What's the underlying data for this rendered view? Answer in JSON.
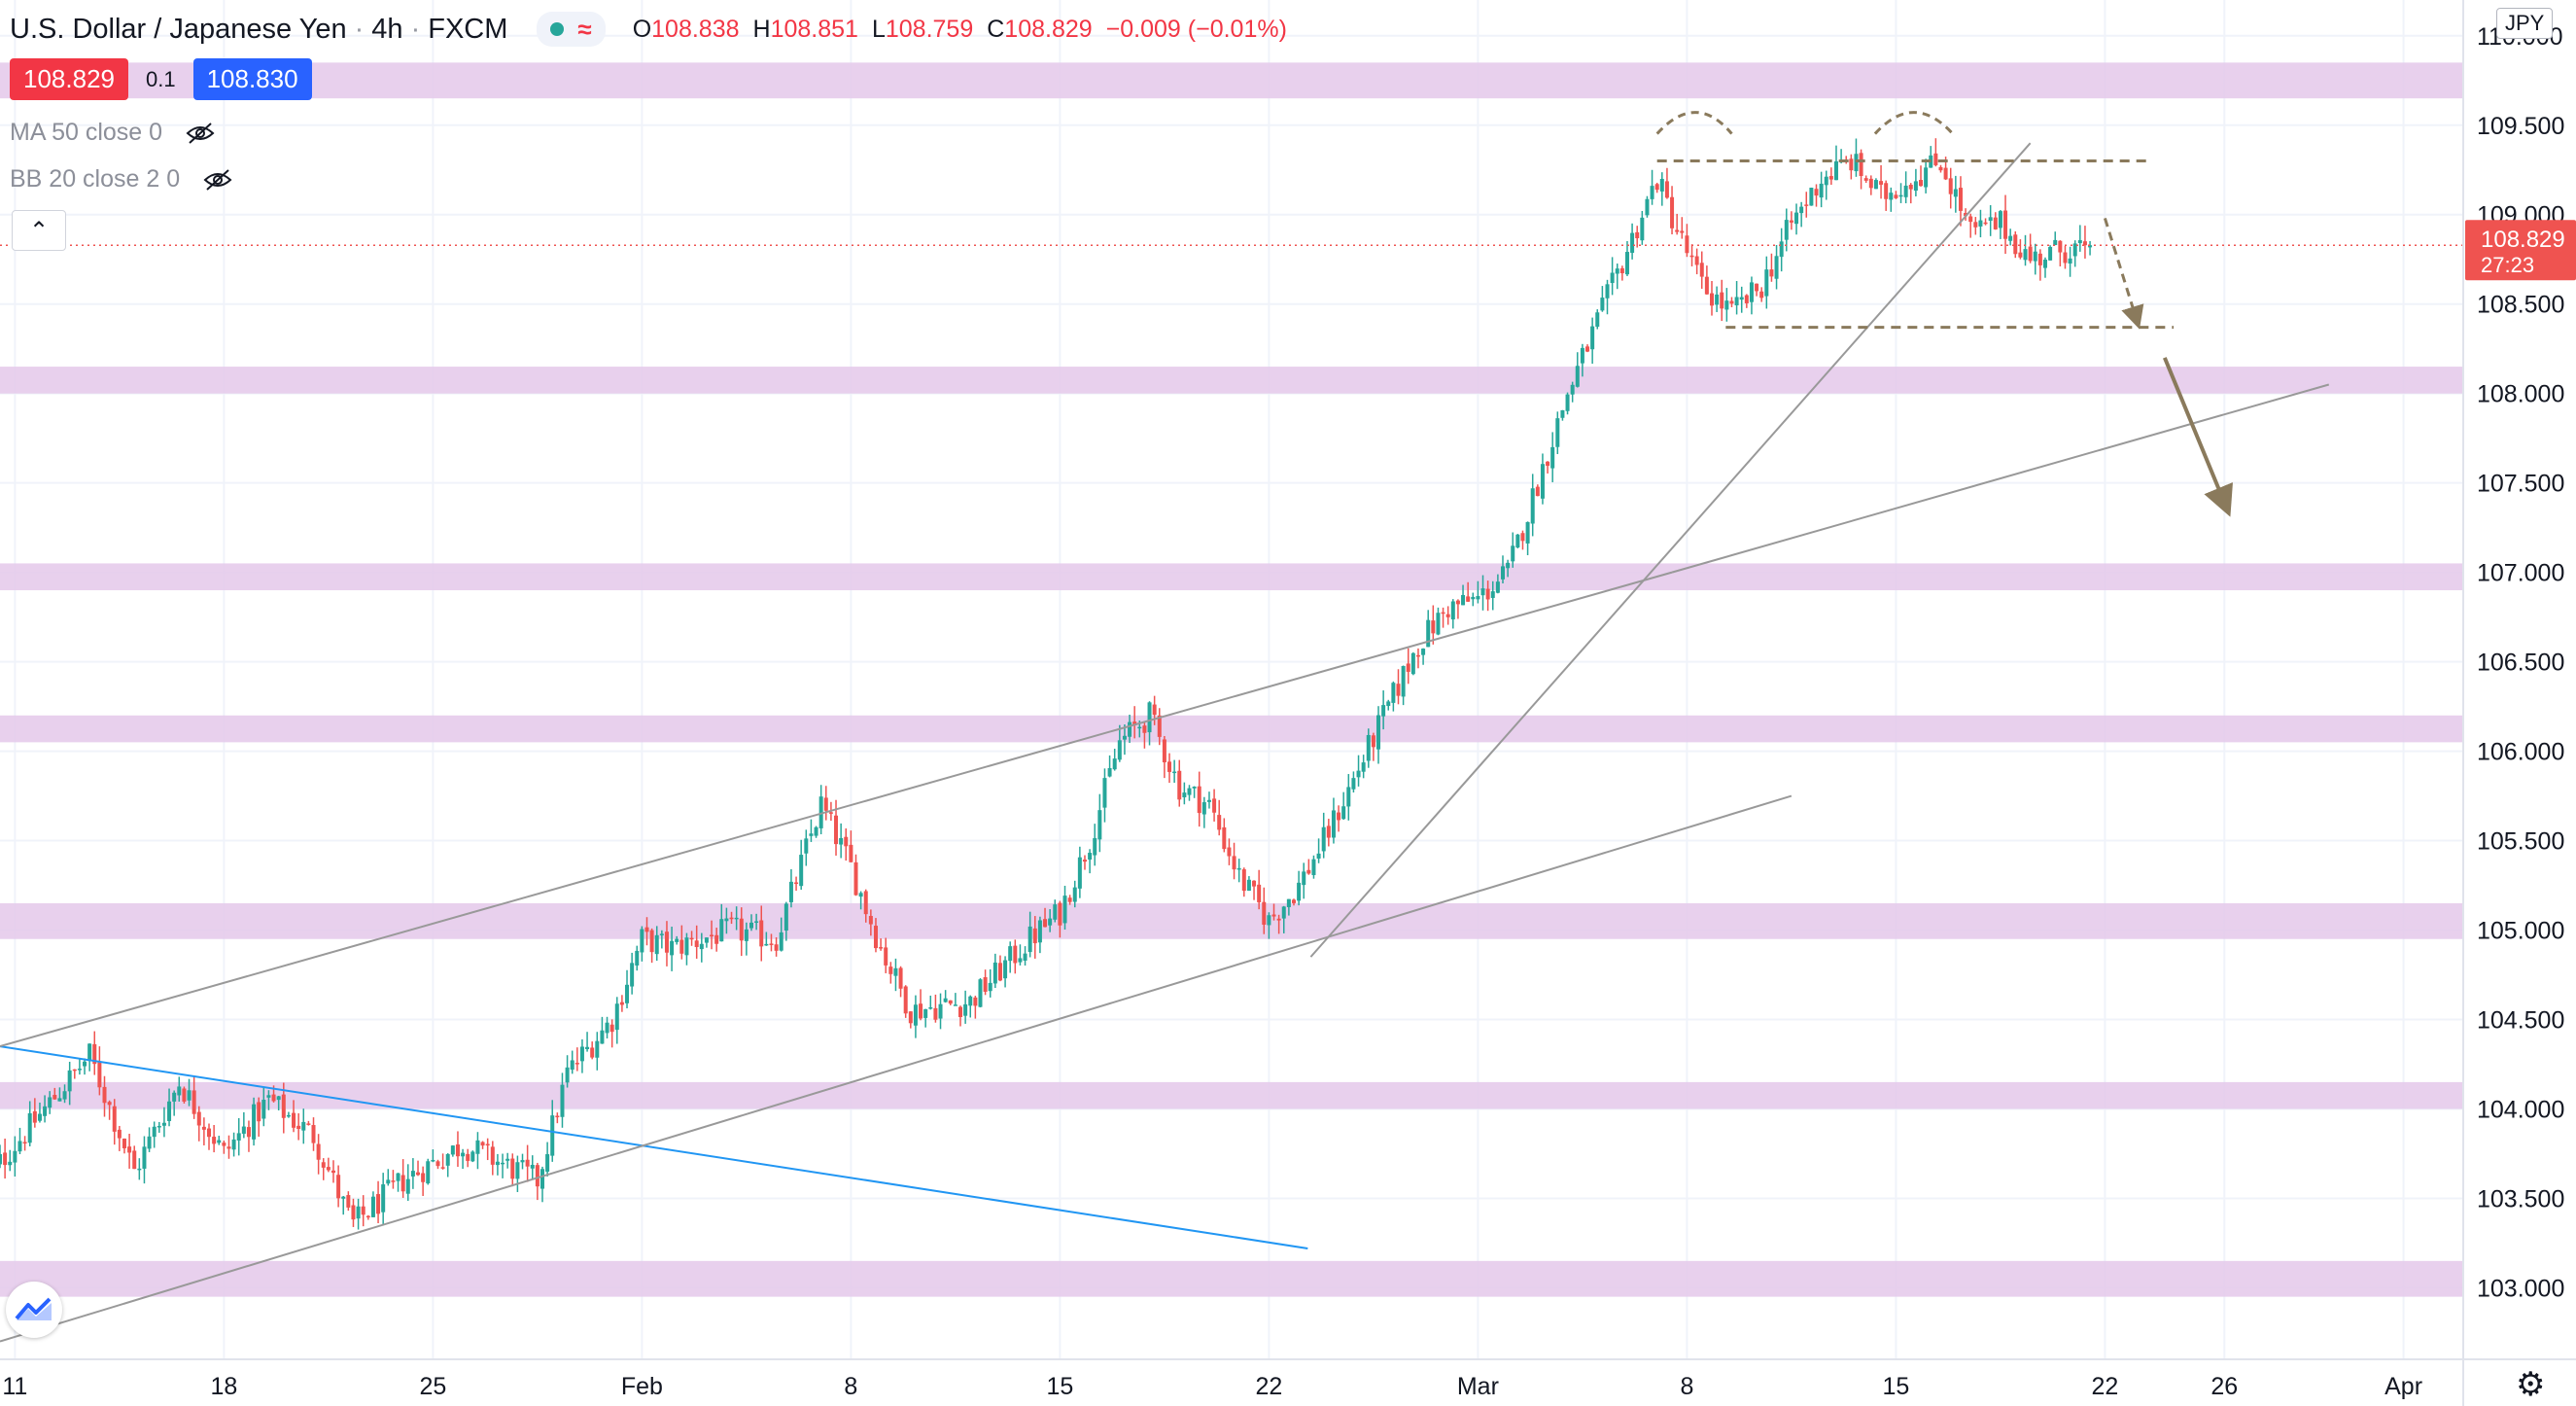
{
  "header": {
    "symbol": "U.S. Dollar / Japanese Yen",
    "interval": "4h",
    "exchange": "FXCM",
    "open_label": "O",
    "open": "108.838",
    "high_label": "H",
    "high": "108.851",
    "low_label": "L",
    "low": "108.759",
    "close_label": "C",
    "close": "108.829",
    "change": "−0.009 (−0.01%)"
  },
  "prices": {
    "bid": "108.829",
    "spread": "0.1",
    "ask": "108.830"
  },
  "indicators": [
    {
      "label": "MA 50 close 0"
    },
    {
      "label": "BB 20 close 2 0"
    }
  ],
  "currency_button": "JPY",
  "colors": {
    "up": "#26a69a",
    "down": "#ef5350",
    "zone": "#e4c8ea",
    "accent_blue": "#2196f3",
    "trend_gray": "#999999",
    "annotation_brown": "#8a7a5c"
  },
  "icons": [
    "eye-hidden-icon",
    "chevron-up-icon",
    "tradingview-logo-icon",
    "gear-icon",
    "status-dot-icon",
    "wave-icon"
  ],
  "chart_data": {
    "type": "candlestick",
    "title": "U.S. Dollar / Japanese Yen, 4h, FXCM",
    "y_axis": {
      "ticks": [
        "103.000",
        "103.500",
        "104.000",
        "104.500",
        "105.000",
        "105.500",
        "106.000",
        "106.500",
        "107.000",
        "107.500",
        "108.000",
        "108.500",
        "109.000",
        "109.500",
        "110.000"
      ],
      "range": [
        102.6,
        110.2
      ],
      "position": "right"
    },
    "x_axis": {
      "ticks": [
        "11",
        "18",
        "25",
        "Feb",
        "8",
        "15",
        "22",
        "Mar",
        "8",
        "15",
        "22",
        "26",
        "Apr"
      ],
      "tick_days": [
        11,
        18,
        25,
        32,
        39,
        46,
        53,
        60,
        67,
        74,
        81,
        85,
        91
      ],
      "day_range": [
        10.5,
        93
      ],
      "unit": "day of year 2021 (Jan 11 = 11)"
    },
    "last_price": {
      "value": 108.829,
      "label": "108.829",
      "countdown": "27:23"
    },
    "price_path": [
      [
        10,
        103.6
      ],
      [
        12,
        104.0
      ],
      [
        13.5,
        104.3
      ],
      [
        15,
        103.65
      ],
      [
        16.5,
        104.15
      ],
      [
        18,
        103.75
      ],
      [
        19.5,
        104.05
      ],
      [
        21,
        103.85
      ],
      [
        22.3,
        103.35
      ],
      [
        24,
        103.6
      ],
      [
        26,
        103.8
      ],
      [
        28.5,
        103.6
      ],
      [
        29.5,
        104.2
      ],
      [
        31,
        104.5
      ],
      [
        32,
        104.95
      ],
      [
        33,
        104.9
      ],
      [
        35,
        105.0
      ],
      [
        36.5,
        104.95
      ],
      [
        38,
        105.7
      ],
      [
        39,
        105.35
      ],
      [
        40,
        104.9
      ],
      [
        41,
        104.55
      ],
      [
        43,
        104.6
      ],
      [
        45,
        104.95
      ],
      [
        46,
        105.1
      ],
      [
        47,
        105.5
      ],
      [
        48,
        106.05
      ],
      [
        49,
        106.2
      ],
      [
        50,
        105.8
      ],
      [
        51,
        105.7
      ],
      [
        52,
        105.3
      ],
      [
        53,
        105.05
      ],
      [
        54,
        105.25
      ],
      [
        55,
        105.55
      ],
      [
        56,
        105.9
      ],
      [
        57,
        106.25
      ],
      [
        58,
        106.6
      ],
      [
        59,
        106.8
      ],
      [
        60,
        106.85
      ],
      [
        61,
        107.0
      ],
      [
        62,
        107.5
      ],
      [
        63,
        108.0
      ],
      [
        64,
        108.4
      ],
      [
        65,
        108.8
      ],
      [
        66,
        109.2
      ],
      [
        66.7,
        108.9
      ],
      [
        67.5,
        108.6
      ],
      [
        68.5,
        108.45
      ],
      [
        69.5,
        108.6
      ],
      [
        70.5,
        108.95
      ],
      [
        71.5,
        109.2
      ],
      [
        72.5,
        109.3
      ],
      [
        73.5,
        109.1
      ],
      [
        74.5,
        109.2
      ],
      [
        75.5,
        109.3
      ],
      [
        76.5,
        108.9
      ],
      [
        77.5,
        108.95
      ],
      [
        78.5,
        108.75
      ],
      [
        79.5,
        108.8
      ],
      [
        80.5,
        108.83
      ]
    ],
    "support_resistance_zones": [
      [
        109.65,
        109.85
      ],
      [
        108.0,
        108.15
      ],
      [
        106.9,
        107.05
      ],
      [
        106.05,
        106.2
      ],
      [
        104.95,
        105.15
      ],
      [
        104.0,
        104.15
      ],
      [
        102.95,
        103.15
      ]
    ],
    "trendlines": [
      {
        "color": "blue",
        "from": [
          10.5,
          104.35
        ],
        "to": [
          54.3,
          103.22
        ]
      },
      {
        "color": "gray",
        "from": [
          10.5,
          102.7
        ],
        "to": [
          70.5,
          105.75
        ]
      },
      {
        "color": "gray",
        "from": [
          10.5,
          104.35
        ],
        "to": [
          66.5,
          107.0
        ]
      },
      {
        "color": "gray",
        "from": [
          54.4,
          104.85
        ],
        "to": [
          78.5,
          109.4
        ]
      },
      {
        "color": "gray",
        "from": [
          66.5,
          107.0
        ],
        "to": [
          88.5,
          108.05
        ]
      }
    ],
    "pattern": {
      "name": "double top",
      "resistance": 109.3,
      "neckline": 108.37,
      "projected_target": 107.35
    },
    "grid": true,
    "legend": "top-left"
  }
}
